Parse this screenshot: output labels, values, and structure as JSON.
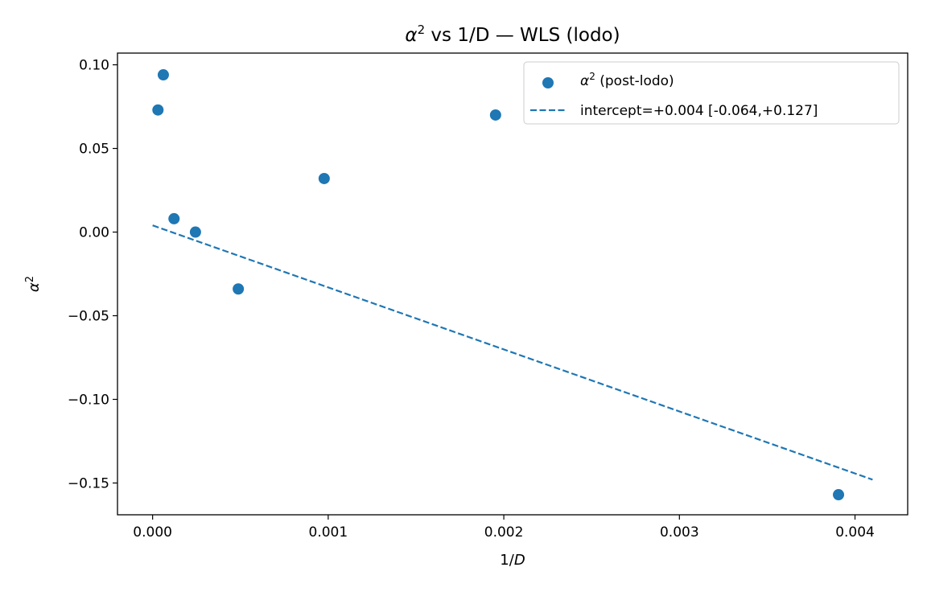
{
  "chart_data": {
    "type": "scatter",
    "title": "α² vs 1/D — WLS (lodo)",
    "title_parts": {
      "symbol": "α",
      "sup": "2",
      "rest": " vs 1/D — WLS (lodo)"
    },
    "xlabel": "1/D",
    "xlabel_parts": {
      "pre": "1/",
      "var": "D"
    },
    "ylabel": "α²",
    "ylabel_parts": {
      "symbol": "α",
      "sup": "2"
    },
    "xlim": [
      -0.0002,
      0.0043
    ],
    "ylim": [
      -0.169,
      0.107
    ],
    "xticks": [
      0.0,
      0.001,
      0.002,
      0.003,
      0.004
    ],
    "xtick_labels": [
      "0.000",
      "0.001",
      "0.002",
      "0.003",
      "0.004"
    ],
    "yticks": [
      0.1,
      0.05,
      0.0,
      -0.05,
      -0.1,
      -0.15
    ],
    "ytick_labels": [
      "0.10",
      "0.05",
      "0.00",
      "−0.05",
      "−0.10",
      "−0.15"
    ],
    "grid": false,
    "legend_position": "top-right",
    "color": "#1f77b4",
    "series": [
      {
        "name": "α² (post-lodo)",
        "name_parts": {
          "symbol": "α",
          "sup": "2",
          "rest": " (post-lodo)"
        },
        "kind": "scatter",
        "x": [
          3.05e-05,
          6.1e-05,
          0.000122,
          0.000244,
          0.000488,
          0.000977,
          0.001953,
          0.003906
        ],
        "y": [
          0.073,
          0.094,
          0.008,
          0.0,
          -0.034,
          0.032,
          0.07,
          -0.157
        ]
      },
      {
        "name": "intercept=+0.004 [-0.064,+0.127]",
        "kind": "line",
        "style": "dashed",
        "x": [
          0.0,
          0.0041
        ],
        "y": [
          0.004,
          -0.148
        ]
      }
    ]
  }
}
